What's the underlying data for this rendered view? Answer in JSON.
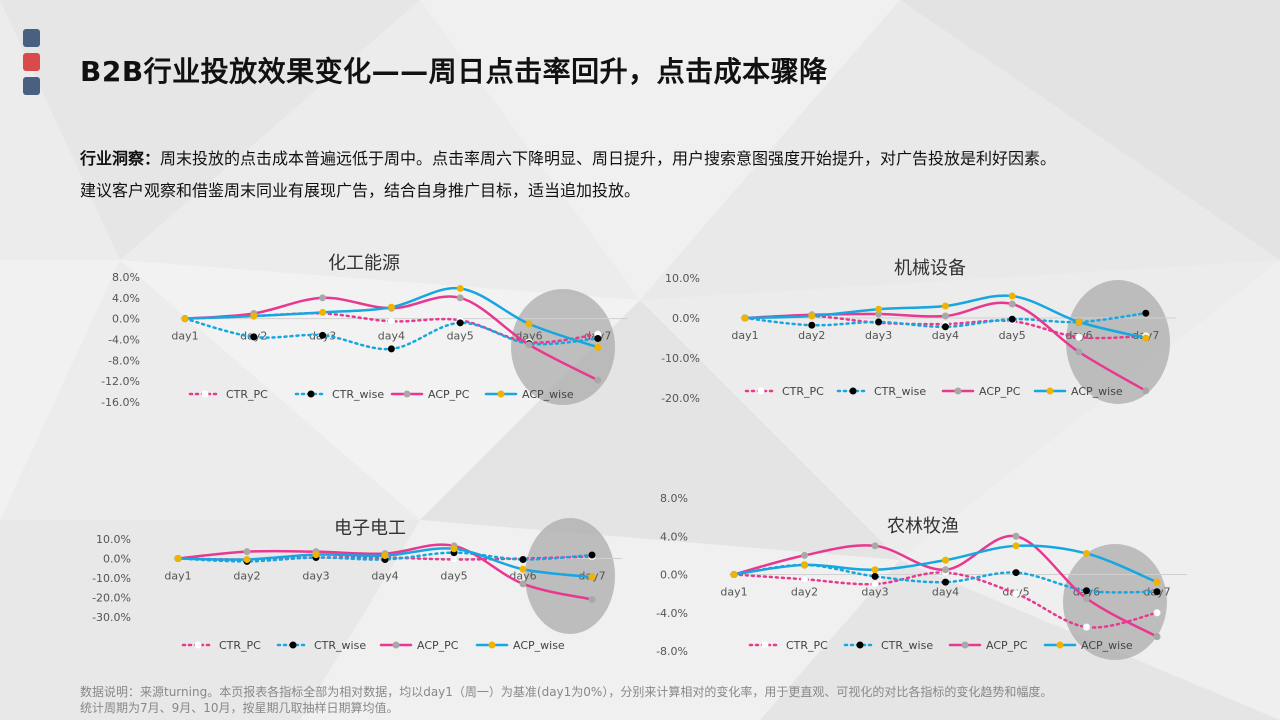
{
  "page": {
    "title": "B2B行业投放效果变化——周日点击率回升，点击成本骤降",
    "insight_label": "行业洞察：",
    "insight_text": "周末投放的点击成本普遍远低于周中。点击率周六下降明显、周日提升，用户搜索意图强度开始提升，对广告投放是利好因素。",
    "insight_text2": "建议客户观察和借鉴周末同业有展现广告，结合自身推广目标，适当追加投放。",
    "note_line1": "数据说明：来源turning。本页报表各指标全部为相对数据，均以day1（周一）为基准(day1为0%），分别来计算相对的变化率，用于更直观、可视化的对比各指标的变化趋势和幅度。",
    "note_line2": "统计周期为7月、9月、10月，按星期几取抽样日期算均值。",
    "deco_colors": [
      "#4a6080",
      "#d94a4a",
      "#4a6080"
    ]
  },
  "chart_data": [
    {
      "type": "line",
      "title": "化工能源",
      "categories": [
        "day1",
        "day2",
        "day3",
        "day4",
        "day5",
        "day6",
        "day7"
      ],
      "y_ticks": [
        "8.0%",
        "4.0%",
        "0.0%",
        "-4.0%",
        "-8.0%",
        "-12.0%",
        "-16.0%"
      ],
      "ylim": [
        -16,
        8
      ],
      "series": [
        {
          "name": "CTR_PC",
          "color": "#e8388f",
          "dash": "dot",
          "values": [
            0,
            0.5,
            1.0,
            -0.5,
            -0.3,
            -4.5,
            -3.0
          ]
        },
        {
          "name": "CTR_wise",
          "color": "#16a6e0",
          "dash": "dot",
          "values": [
            0,
            -3.5,
            -3.2,
            -5.8,
            -0.8,
            -4.8,
            -3.8
          ]
        },
        {
          "name": "ACP_PC",
          "color": "#e8388f",
          "dash": "solid",
          "values": [
            0,
            1.0,
            4.0,
            2.0,
            4.0,
            -5.0,
            -11.8
          ]
        },
        {
          "name": "ACP_wise",
          "color": "#16a6e0",
          "dash": "solid",
          "values": [
            0,
            0.5,
            1.2,
            2.2,
            5.8,
            -1.0,
            -5.5
          ]
        }
      ]
    },
    {
      "type": "line",
      "title": "机械设备",
      "categories": [
        "day1",
        "day2",
        "day3",
        "day4",
        "day5",
        "day6",
        "day7"
      ],
      "y_ticks": [
        "10.0%",
        "0.0%",
        "-10.0%",
        "-20.0%"
      ],
      "ylim": [
        -20,
        10
      ],
      "series": [
        {
          "name": "CTR_PC",
          "color": "#e8388f",
          "dash": "dot",
          "values": [
            0,
            0.5,
            -1.2,
            -1.5,
            -0.8,
            -4.8,
            -4.5
          ]
        },
        {
          "name": "CTR_wise",
          "color": "#16a6e0",
          "dash": "dot",
          "values": [
            0,
            -1.8,
            -1.0,
            -2.2,
            -0.3,
            -1.0,
            1.2
          ]
        },
        {
          "name": "ACP_PC",
          "color": "#e8388f",
          "dash": "solid",
          "values": [
            0,
            0.8,
            1.0,
            0.5,
            3.5,
            -8.5,
            -18.2
          ]
        },
        {
          "name": "ACP_wise",
          "color": "#16a6e0",
          "dash": "solid",
          "values": [
            0,
            0.5,
            2.2,
            3.0,
            5.5,
            -1.0,
            -5.0
          ]
        }
      ]
    },
    {
      "type": "line",
      "title": "电子电工",
      "categories": [
        "day1",
        "day2",
        "day3",
        "day4",
        "day5",
        "day6",
        "day7"
      ],
      "y_ticks": [
        "10.0%",
        "0.0%",
        "-10.0%",
        "-20.0%",
        "-30.0%"
      ],
      "ylim": [
        -30,
        10
      ],
      "series": [
        {
          "name": "CTR_PC",
          "color": "#e8388f",
          "dash": "dot",
          "values": [
            0,
            -0.5,
            0.5,
            0.5,
            -0.5,
            0,
            1.0
          ]
        },
        {
          "name": "CTR_wise",
          "color": "#16a6e0",
          "dash": "dot",
          "values": [
            0,
            -1.5,
            0.5,
            -0.5,
            3.0,
            -0.5,
            1.8
          ]
        },
        {
          "name": "ACP_PC",
          "color": "#e8388f",
          "dash": "solid",
          "values": [
            0,
            3.5,
            3.5,
            2.5,
            6.5,
            -13.0,
            -21.0
          ]
        },
        {
          "name": "ACP_wise",
          "color": "#16a6e0",
          "dash": "solid",
          "values": [
            0,
            -0.5,
            2.0,
            1.5,
            5.0,
            -5.5,
            -9.5
          ]
        }
      ]
    },
    {
      "type": "line",
      "title": "农林牧渔",
      "categories": [
        "day1",
        "day2",
        "day3",
        "day4",
        "day5",
        "day6",
        "day7"
      ],
      "y_ticks": [
        "8.0%",
        "4.0%",
        "0.0%",
        "-4.0%",
        "-8.0%"
      ],
      "ylim": [
        -8,
        8
      ],
      "series": [
        {
          "name": "CTR_PC",
          "color": "#e8388f",
          "dash": "dot",
          "values": [
            0,
            -0.5,
            -1.0,
            0.2,
            -2.0,
            -5.5,
            -4.0
          ]
        },
        {
          "name": "CTR_wise",
          "color": "#16a6e0",
          "dash": "dot",
          "values": [
            0,
            1.0,
            -0.2,
            -0.8,
            0.2,
            -1.7,
            -1.8
          ]
        },
        {
          "name": "ACP_PC",
          "color": "#e8388f",
          "dash": "solid",
          "values": [
            0,
            2.0,
            3.0,
            0.5,
            4.0,
            -2.5,
            -6.5
          ]
        },
        {
          "name": "ACP_wise",
          "color": "#16a6e0",
          "dash": "solid",
          "values": [
            0,
            1.0,
            0.5,
            1.5,
            3.0,
            2.2,
            -0.8
          ]
        }
      ]
    }
  ]
}
